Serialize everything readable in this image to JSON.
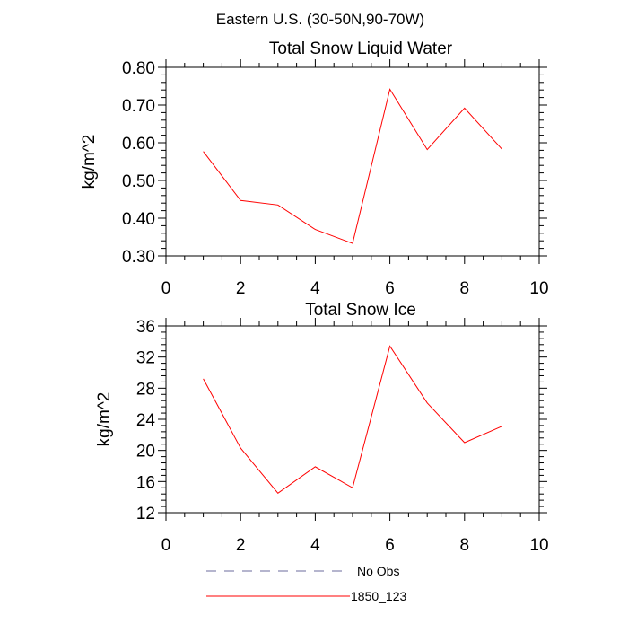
{
  "figure": {
    "title": "Eastern U.S. (30-50N,90-70W)"
  },
  "chart_data": [
    {
      "type": "line",
      "title": "Total Snow Liquid Water",
      "xlabel": "",
      "ylabel": "kg/m^2",
      "xlim": [
        0,
        10
      ],
      "ylim": [
        0.3,
        0.8
      ],
      "xticks": [
        "0",
        "2",
        "4",
        "6",
        "8",
        "10"
      ],
      "yticks": [
        "0.30",
        "0.40",
        "0.50",
        "0.60",
        "0.70",
        "0.80"
      ],
      "grid": false,
      "x": [
        1,
        2,
        3,
        4,
        5,
        6,
        7,
        8,
        9
      ],
      "series": [
        {
          "name": "1850_123",
          "color": "#ff0000",
          "values": [
            0.577,
            0.447,
            0.435,
            0.37,
            0.333,
            0.742,
            0.582,
            0.692,
            0.583
          ]
        }
      ]
    },
    {
      "type": "line",
      "title": "Total Snow Ice",
      "xlabel": "",
      "ylabel": "kg/m^2",
      "xlim": [
        0,
        10
      ],
      "ylim": [
        12,
        36
      ],
      "xticks": [
        "0",
        "2",
        "4",
        "6",
        "8",
        "10"
      ],
      "yticks": [
        "12",
        "16",
        "20",
        "24",
        "28",
        "32",
        "36"
      ],
      "grid": false,
      "x": [
        1,
        2,
        3,
        4,
        5,
        6,
        7,
        8,
        9
      ],
      "series": [
        {
          "name": "1850_123",
          "color": "#ff0000",
          "values": [
            29.2,
            20.3,
            14.5,
            17.9,
            15.2,
            33.4,
            26.1,
            21.0,
            23.1
          ]
        }
      ]
    }
  ],
  "legend": {
    "placement": "bottom",
    "entries": [
      {
        "label": "No Obs",
        "color": "#6b6b9e",
        "style": "dashed"
      },
      {
        "label": "1850_123",
        "color": "#ff0000",
        "style": "solid"
      }
    ]
  }
}
